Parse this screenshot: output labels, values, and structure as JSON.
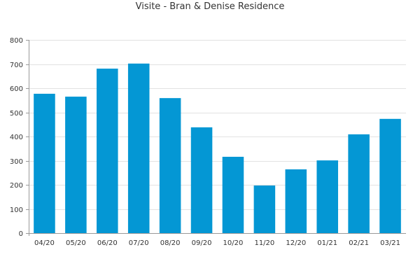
{
  "chart_data": {
    "type": "bar",
    "title": "Visite - Bran & Denise Residence",
    "xlabel": "",
    "ylabel": "",
    "categories": [
      "04/20",
      "05/20",
      "06/20",
      "07/20",
      "08/20",
      "09/20",
      "10/20",
      "11/20",
      "12/20",
      "01/21",
      "02/21",
      "03/21"
    ],
    "values": [
      577,
      565,
      681,
      702,
      559,
      438,
      316,
      197,
      264,
      301,
      409,
      473
    ],
    "ylim": [
      0,
      800
    ],
    "yticks": [
      0,
      100,
      200,
      300,
      400,
      500,
      600,
      700,
      800
    ],
    "grid": true,
    "legend": "none",
    "bar_color": "#0497d4",
    "grid_color": "#e2e2e2",
    "axis_color": "#999999"
  }
}
